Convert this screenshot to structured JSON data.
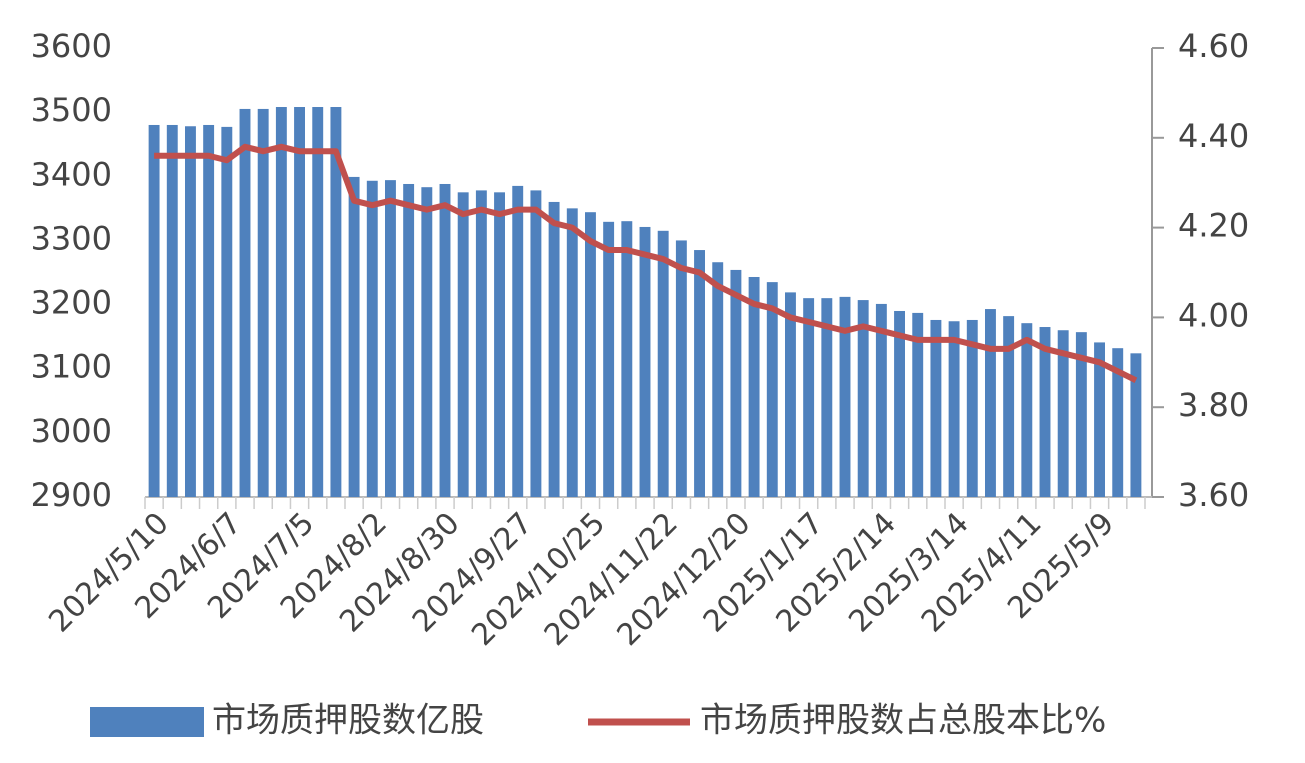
{
  "chart_data": {
    "type": "bar-line",
    "categories": [
      "2024/5/10",
      null,
      null,
      null,
      "2024/6/7",
      null,
      null,
      null,
      "2024/7/5",
      null,
      null,
      null,
      "2024/8/2",
      null,
      null,
      null,
      "2024/8/30",
      null,
      null,
      null,
      "2024/9/27",
      null,
      null,
      null,
      "2024/10/25",
      null,
      null,
      null,
      "2024/11/22",
      null,
      null,
      null,
      "2024/12/20",
      null,
      null,
      null,
      "2025/1/17",
      null,
      null,
      null,
      "2025/2/14",
      null,
      null,
      null,
      "2025/3/14",
      null,
      null,
      null,
      "2025/4/11",
      null,
      null,
      null,
      "2025/5/9",
      null,
      null
    ],
    "series": [
      {
        "name": "市场质押股数亿股",
        "type": "bar",
        "color": "#4f81bd",
        "axis": "y",
        "values": [
          3480,
          3480,
          3478,
          3480,
          3477,
          3505,
          3505,
          3508,
          3508,
          3508,
          3508,
          3399,
          3393,
          3394,
          3388,
          3383,
          3388,
          3375,
          3378,
          3375,
          3385,
          3378,
          3360,
          3350,
          3344,
          3329,
          3330,
          3321,
          3315,
          3300,
          3285,
          3266,
          3254,
          3243,
          3235,
          3219,
          3210,
          3210,
          3212,
          3207,
          3201,
          3190,
          3187,
          3176,
          3174,
          3176,
          3193,
          3182,
          3171,
          3165,
          3160,
          3157,
          3141,
          3132,
          3124
        ]
      },
      {
        "name": "市场质押股数占总股本比%",
        "type": "line",
        "color": "#c0504d",
        "axis": "y2",
        "values": [
          4.36,
          4.36,
          4.36,
          4.36,
          4.35,
          4.38,
          4.37,
          4.38,
          4.37,
          4.37,
          4.37,
          4.26,
          4.25,
          4.26,
          4.25,
          4.24,
          4.25,
          4.23,
          4.24,
          4.23,
          4.24,
          4.24,
          4.21,
          4.2,
          4.17,
          4.15,
          4.15,
          4.14,
          4.13,
          4.11,
          4.1,
          4.07,
          4.05,
          4.03,
          4.02,
          4.0,
          3.99,
          3.98,
          3.97,
          3.98,
          3.97,
          3.96,
          3.95,
          3.95,
          3.95,
          3.94,
          3.93,
          3.93,
          3.95,
          3.93,
          3.92,
          3.91,
          3.9,
          3.88,
          3.86
        ]
      }
    ],
    "ylim": [
      2900,
      3600
    ],
    "yticks": [
      2900,
      3000,
      3100,
      3200,
      3300,
      3400,
      3500,
      3600
    ],
    "y2lim": [
      3.6,
      4.6
    ],
    "y2ticks": [
      {
        "value": 3.6,
        "label": "3.60"
      },
      {
        "value": 3.8,
        "label": "3.80"
      },
      {
        "value": 4.0,
        "label": "4.00"
      },
      {
        "value": 4.2,
        "label": "4.20"
      },
      {
        "value": 4.4,
        "label": "4.40"
      },
      {
        "value": 4.6,
        "label": "4.60"
      }
    ],
    "grid": false,
    "legend": "bottom"
  }
}
